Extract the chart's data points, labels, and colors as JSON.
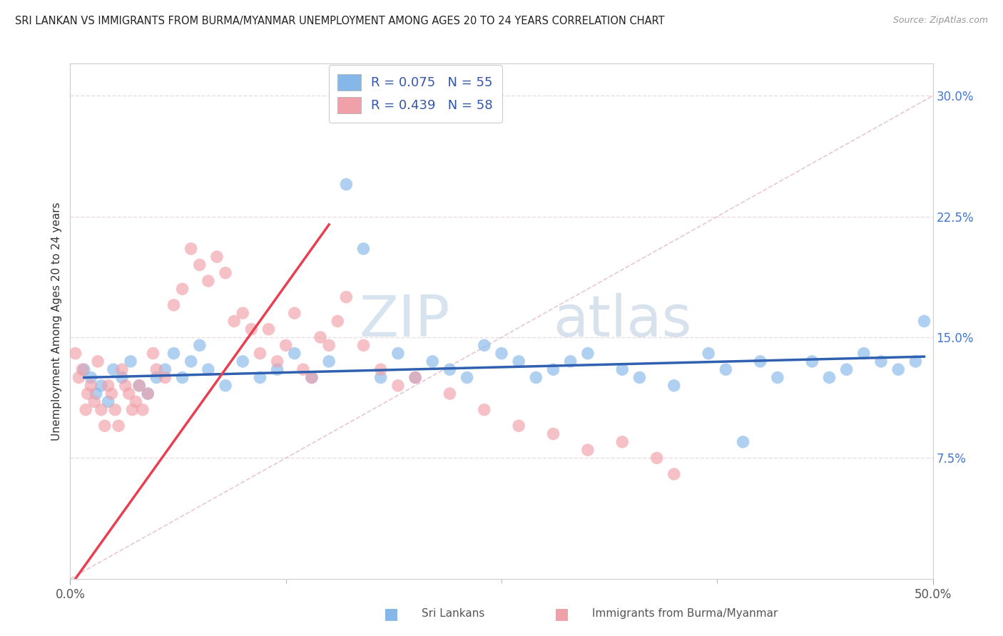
{
  "title": "SRI LANKAN VS IMMIGRANTS FROM BURMA/MYANMAR UNEMPLOYMENT AMONG AGES 20 TO 24 YEARS CORRELATION CHART",
  "source": "Source: ZipAtlas.com",
  "ylabel": "Unemployment Among Ages 20 to 24 years",
  "xlim": [
    0.0,
    50.0
  ],
  "ylim": [
    0.0,
    32.0
  ],
  "yticks": [
    0.0,
    7.5,
    15.0,
    22.5,
    30.0
  ],
  "ytick_labels": [
    "",
    "7.5%",
    "15.0%",
    "22.5%",
    "30.0%"
  ],
  "sri_lanka_color": "#85b8e8",
  "burma_color": "#f0a0a8",
  "sri_lanka_R": 0.075,
  "sri_lanka_N": 55,
  "burma_R": 0.439,
  "burma_N": 58,
  "background_color": "#ffffff",
  "grid_color": "#e8d8e0",
  "diag_color": "#e8c8d0",
  "watermark_text": "ZIPatlas",
  "watermark_color": "#c8d8ec",
  "blue_line_color": "#3060b0",
  "red_line_color": "#e84050",
  "sri_lankans_x": [
    0.8,
    1.2,
    1.5,
    1.8,
    2.2,
    2.5,
    3.0,
    3.5,
    4.0,
    4.5,
    5.0,
    5.5,
    6.0,
    6.5,
    7.0,
    7.5,
    8.0,
    9.0,
    10.0,
    11.0,
    12.0,
    13.0,
    14.0,
    15.0,
    16.0,
    17.0,
    18.0,
    19.0,
    20.0,
    21.0,
    22.0,
    23.0,
    24.0,
    25.0,
    26.0,
    27.0,
    28.0,
    29.0,
    30.0,
    32.0,
    33.0,
    35.0,
    37.0,
    38.0,
    39.0,
    40.0,
    41.0,
    43.0,
    44.0,
    45.0,
    46.0,
    47.0,
    48.0,
    49.0,
    49.5
  ],
  "sri_lankans_y": [
    13.0,
    12.5,
    11.5,
    12.0,
    11.0,
    13.0,
    12.5,
    13.5,
    12.0,
    11.5,
    12.5,
    13.0,
    14.0,
    12.5,
    13.5,
    14.5,
    13.0,
    12.0,
    13.5,
    12.5,
    13.0,
    14.0,
    12.5,
    13.5,
    24.5,
    20.5,
    12.5,
    14.0,
    12.5,
    13.5,
    13.0,
    12.5,
    14.5,
    14.0,
    13.5,
    12.5,
    13.0,
    13.5,
    14.0,
    13.0,
    12.5,
    12.0,
    14.0,
    13.0,
    8.5,
    13.5,
    12.5,
    13.5,
    12.5,
    13.0,
    14.0,
    13.5,
    13.0,
    13.5,
    16.0
  ],
  "burma_x": [
    0.3,
    0.5,
    0.7,
    0.9,
    1.0,
    1.2,
    1.4,
    1.6,
    1.8,
    2.0,
    2.2,
    2.4,
    2.6,
    2.8,
    3.0,
    3.2,
    3.4,
    3.6,
    3.8,
    4.0,
    4.2,
    4.5,
    4.8,
    5.0,
    5.5,
    6.0,
    6.5,
    7.0,
    7.5,
    8.0,
    8.5,
    9.0,
    9.5,
    10.0,
    10.5,
    11.0,
    11.5,
    12.0,
    12.5,
    13.0,
    13.5,
    14.0,
    14.5,
    15.0,
    15.5,
    16.0,
    17.0,
    18.0,
    19.0,
    20.0,
    22.0,
    24.0,
    26.0,
    28.0,
    30.0,
    32.0,
    34.0,
    35.0
  ],
  "burma_y": [
    14.0,
    12.5,
    13.0,
    10.5,
    11.5,
    12.0,
    11.0,
    13.5,
    10.5,
    9.5,
    12.0,
    11.5,
    10.5,
    9.5,
    13.0,
    12.0,
    11.5,
    10.5,
    11.0,
    12.0,
    10.5,
    11.5,
    14.0,
    13.0,
    12.5,
    17.0,
    18.0,
    20.5,
    19.5,
    18.5,
    20.0,
    19.0,
    16.0,
    16.5,
    15.5,
    14.0,
    15.5,
    13.5,
    14.5,
    16.5,
    13.0,
    12.5,
    15.0,
    14.5,
    16.0,
    17.5,
    14.5,
    13.0,
    12.0,
    12.5,
    11.5,
    10.5,
    9.5,
    9.0,
    8.0,
    8.5,
    7.5,
    6.5
  ],
  "sri_lanka_line_x": [
    0.8,
    49.5
  ],
  "sri_lanka_line_y": [
    12.5,
    13.8
  ],
  "burma_line_x": [
    0.3,
    15.0
  ],
  "burma_line_y": [
    0.0,
    22.0
  ]
}
